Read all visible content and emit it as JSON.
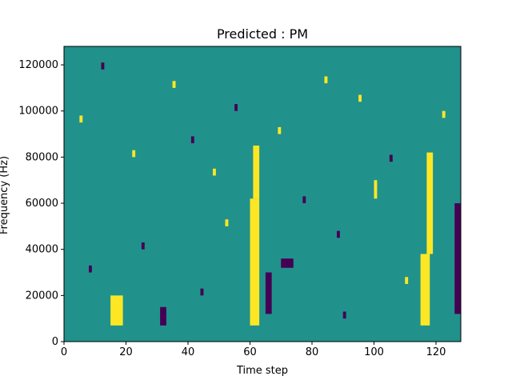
{
  "chart_data": {
    "type": "heatmap",
    "title": "Predicted : PM",
    "xlabel": "Time step",
    "ylabel": "Frequency (Hz)",
    "xlim": [
      0,
      128
    ],
    "ylim": [
      0,
      128000
    ],
    "x_ticks": [
      0,
      20,
      40,
      60,
      80,
      100,
      120
    ],
    "x_tick_labels": [
      "0",
      "20",
      "40",
      "60",
      "80",
      "100",
      "120"
    ],
    "y_ticks": [
      0,
      20000,
      40000,
      60000,
      80000,
      100000,
      120000
    ],
    "y_tick_labels": [
      "0",
      "20000",
      "40000",
      "60000",
      "80000",
      "100000",
      "120000"
    ],
    "grid": false,
    "colormap": {
      "low": "#440154",
      "mid": "#21918c",
      "high": "#fde725"
    },
    "background_value": 0,
    "cells": [
      {
        "x0": 15,
        "x1": 19,
        "y0": 7000,
        "y1": 20000,
        "value": 1
      },
      {
        "x0": 60,
        "x1": 63,
        "y0": 7000,
        "y1": 62000,
        "value": 1
      },
      {
        "x0": 61,
        "x1": 63,
        "y0": 62000,
        "y1": 85000,
        "value": 1
      },
      {
        "x0": 115,
        "x1": 118,
        "y0": 7000,
        "y1": 38000,
        "value": 1
      },
      {
        "x0": 117,
        "x1": 119,
        "y0": 38000,
        "y1": 82000,
        "value": 1
      },
      {
        "x0": 65,
        "x1": 67,
        "y0": 12000,
        "y1": 30000,
        "value": -1
      },
      {
        "x0": 126,
        "x1": 128,
        "y0": 12000,
        "y1": 60000,
        "value": -1
      },
      {
        "x0": 31,
        "x1": 33,
        "y0": 7000,
        "y1": 15000,
        "value": -1
      },
      {
        "x0": 70,
        "x1": 74,
        "y0": 32000,
        "y1": 36000,
        "value": -1
      },
      {
        "x0": 100,
        "x1": 101,
        "y0": 62000,
        "y1": 70000,
        "value": 1
      },
      {
        "x0": 5,
        "x1": 6,
        "y0": 95000,
        "y1": 98000,
        "value": 1
      },
      {
        "x0": 12,
        "x1": 13,
        "y0": 118000,
        "y1": 121000,
        "value": -1
      },
      {
        "x0": 22,
        "x1": 23,
        "y0": 80000,
        "y1": 83000,
        "value": 1
      },
      {
        "x0": 25,
        "x1": 26,
        "y0": 40000,
        "y1": 43000,
        "value": -1
      },
      {
        "x0": 41,
        "x1": 42,
        "y0": 86000,
        "y1": 89000,
        "value": -1
      },
      {
        "x0": 48,
        "x1": 49,
        "y0": 72000,
        "y1": 75000,
        "value": 1
      },
      {
        "x0": 55,
        "x1": 56,
        "y0": 100000,
        "y1": 103000,
        "value": -1
      },
      {
        "x0": 69,
        "x1": 70,
        "y0": 90000,
        "y1": 93000,
        "value": 1
      },
      {
        "x0": 77,
        "x1": 78,
        "y0": 60000,
        "y1": 63000,
        "value": -1
      },
      {
        "x0": 84,
        "x1": 85,
        "y0": 112000,
        "y1": 115000,
        "value": 1
      },
      {
        "x0": 88,
        "x1": 89,
        "y0": 45000,
        "y1": 48000,
        "value": -1
      },
      {
        "x0": 95,
        "x1": 96,
        "y0": 104000,
        "y1": 107000,
        "value": 1
      },
      {
        "x0": 105,
        "x1": 106,
        "y0": 78000,
        "y1": 81000,
        "value": -1
      },
      {
        "x0": 110,
        "x1": 111,
        "y0": 25000,
        "y1": 28000,
        "value": 1
      },
      {
        "x0": 8,
        "x1": 9,
        "y0": 30000,
        "y1": 33000,
        "value": -1
      },
      {
        "x0": 35,
        "x1": 36,
        "y0": 110000,
        "y1": 113000,
        "value": 1
      },
      {
        "x0": 44,
        "x1": 45,
        "y0": 20000,
        "y1": 23000,
        "value": -1
      },
      {
        "x0": 52,
        "x1": 53,
        "y0": 50000,
        "y1": 53000,
        "value": 1
      },
      {
        "x0": 90,
        "x1": 91,
        "y0": 10000,
        "y1": 13000,
        "value": -1
      },
      {
        "x0": 122,
        "x1": 123,
        "y0": 97000,
        "y1": 100000,
        "value": 1
      }
    ]
  }
}
